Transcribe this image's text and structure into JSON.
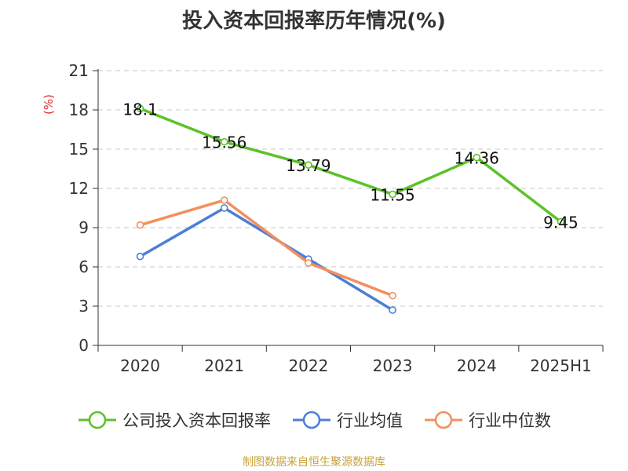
{
  "title": "投入资本回报率历年情况(%)",
  "source_text": "制图数据来自恒生聚源数据库",
  "chart_data": {
    "type": "line",
    "title": "投入资本回报率历年情况(%)",
    "ylabel": "(%)",
    "xlabel": "",
    "categories": [
      "2020",
      "2021",
      "2022",
      "2023",
      "2024",
      "2025H1"
    ],
    "y_ticks": [
      0,
      3,
      6,
      9,
      12,
      15,
      18,
      21
    ],
    "ylim": [
      0,
      21
    ],
    "grid": true,
    "legend_position": "bottom",
    "series": [
      {
        "name": "公司投入资本回报率",
        "color": "#5cc228",
        "values": [
          18.1,
          15.56,
          13.79,
          11.55,
          14.36,
          9.45
        ],
        "labels": [
          "18.1",
          "15.56",
          "13.79",
          "11.55",
          "14.36",
          "9.45"
        ],
        "show_labels": true
      },
      {
        "name": "行业均值",
        "color": "#4b7fd6",
        "values": [
          6.8,
          10.5,
          6.6,
          2.7,
          null,
          null
        ],
        "show_labels": false
      },
      {
        "name": "行业中位数",
        "color": "#f38f5c",
        "values": [
          9.2,
          11.1,
          6.3,
          3.8,
          null,
          null
        ],
        "show_labels": false
      }
    ]
  }
}
